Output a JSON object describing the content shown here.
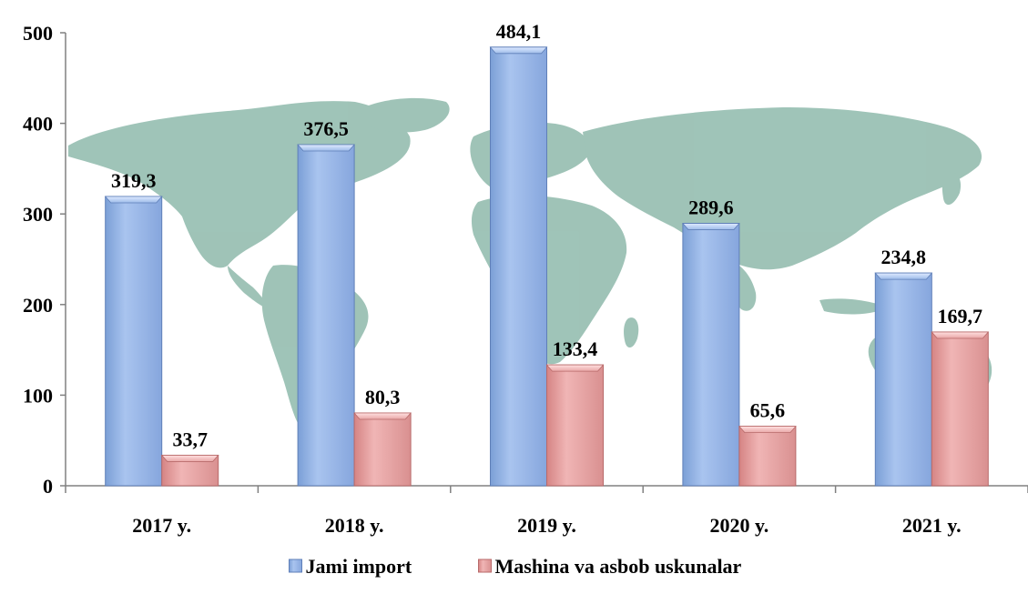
{
  "chart_data": {
    "type": "bar",
    "categories": [
      "2017 y.",
      "2018 y.",
      "2019 y.",
      "2020 y.",
      "2021 y."
    ],
    "series": [
      {
        "name": "Jami import",
        "values": [
          319.3,
          376.5,
          484.1,
          289.6,
          234.8
        ],
        "labels": [
          "319,3",
          "376,5",
          "484,1",
          "289,6",
          "234,8"
        ],
        "color": "#95b3e0"
      },
      {
        "name": "Mashina va asbob uskunalar",
        "values": [
          33.7,
          80.3,
          133.4,
          65.6,
          169.7
        ],
        "labels": [
          "33,7",
          "80,3",
          "133,4",
          "65,6",
          "169,7"
        ],
        "color": "#e09c9c"
      }
    ],
    "yticks": [
      "0",
      "100",
      "200",
      "300",
      "400",
      "500"
    ],
    "ylim": [
      0,
      500
    ],
    "grid": false,
    "legend_position": "bottom",
    "background": "world-map"
  }
}
